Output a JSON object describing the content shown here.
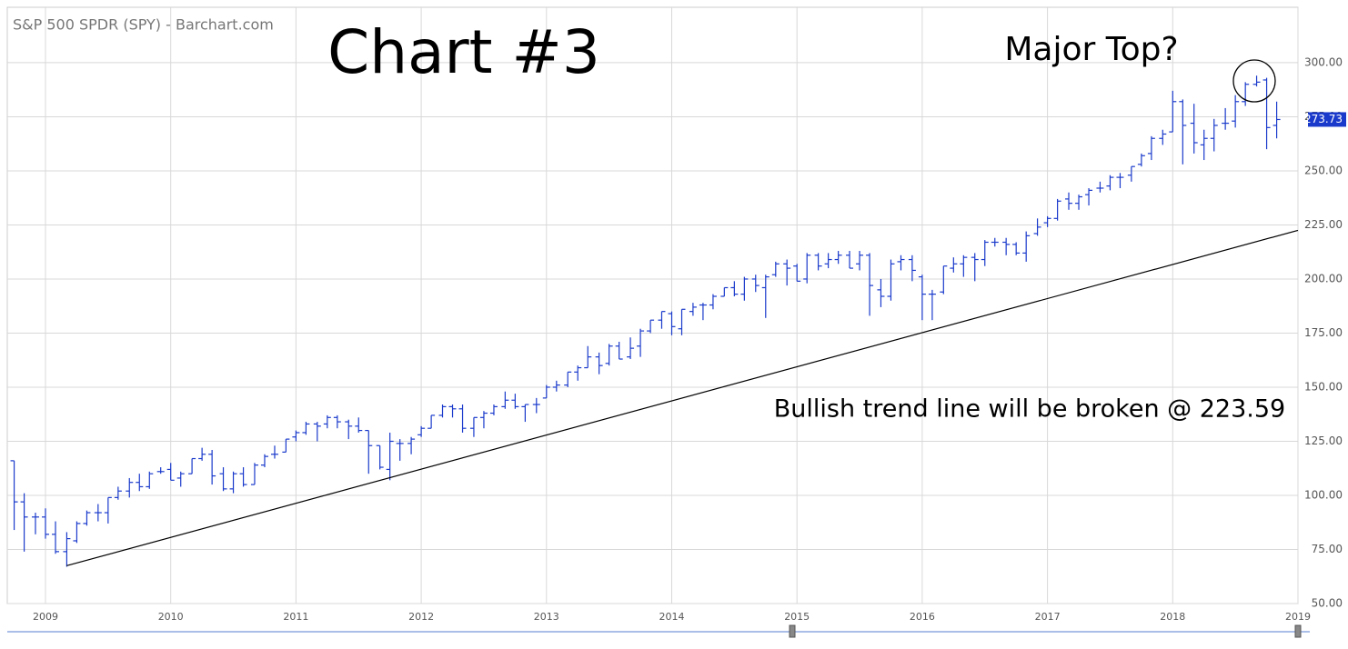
{
  "chart_data": {
    "type": "ohlc",
    "title": "S&P 500 SPDR (SPY) - Barchart.com",
    "annotations": [
      "Chart #3",
      "Major Top?",
      "Bullish trend line will be broken @ 223.59"
    ],
    "color": "#1a3acb",
    "grid": true,
    "xlim": [
      2008.695,
      2019.0
    ],
    "xticks": [
      2009,
      2010,
      2011,
      2012,
      2013,
      2014,
      2015,
      2016,
      2017,
      2018,
      2019
    ],
    "ylim": [
      50,
      325.6
    ],
    "yticks": [
      {
        "value": 50,
        "label": "50.00"
      },
      {
        "value": 75,
        "label": "75.00"
      },
      {
        "value": 100,
        "label": "100.00"
      },
      {
        "value": 125,
        "label": "125.00"
      },
      {
        "value": 150,
        "label": "150.00"
      },
      {
        "value": 175,
        "label": "175.00"
      },
      {
        "value": 200,
        "label": "200.00"
      },
      {
        "value": 225,
        "label": "225.00"
      },
      {
        "value": 250,
        "label": "250.00"
      },
      {
        "value": 275,
        "label": "275.00"
      },
      {
        "value": 300,
        "label": "300.00"
      }
    ],
    "last_price": 273.73,
    "trend_line": {
      "x": [
        2009.17,
        2019.0
      ],
      "y": [
        67.5,
        222.5
      ]
    },
    "x": [
      2008.75,
      2008.83,
      2008.92,
      2009.0,
      2009.08,
      2009.17,
      2009.25,
      2009.33,
      2009.42,
      2009.5,
      2009.58,
      2009.67,
      2009.75,
      2009.83,
      2009.92,
      2010.0,
      2010.08,
      2010.17,
      2010.25,
      2010.33,
      2010.42,
      2010.5,
      2010.58,
      2010.67,
      2010.75,
      2010.83,
      2010.92,
      2011.0,
      2011.08,
      2011.17,
      2011.25,
      2011.33,
      2011.42,
      2011.5,
      2011.58,
      2011.67,
      2011.75,
      2011.83,
      2011.92,
      2012.0,
      2012.08,
      2012.17,
      2012.25,
      2012.33,
      2012.42,
      2012.5,
      2012.58,
      2012.67,
      2012.75,
      2012.83,
      2012.92,
      2013.0,
      2013.08,
      2013.17,
      2013.25,
      2013.33,
      2013.42,
      2013.5,
      2013.58,
      2013.67,
      2013.75,
      2013.83,
      2013.92,
      2014.0,
      2014.08,
      2014.17,
      2014.25,
      2014.33,
      2014.42,
      2014.5,
      2014.58,
      2014.67,
      2014.75,
      2014.83,
      2014.92,
      2015.0,
      2015.08,
      2015.17,
      2015.25,
      2015.33,
      2015.42,
      2015.5,
      2015.58,
      2015.67,
      2015.75,
      2015.83,
      2015.92,
      2016.0,
      2016.08,
      2016.17,
      2016.25,
      2016.33,
      2016.42,
      2016.5,
      2016.58,
      2016.67,
      2016.75,
      2016.83,
      2016.92,
      2017.0,
      2017.08,
      2017.17,
      2017.25,
      2017.33,
      2017.42,
      2017.5,
      2017.58,
      2017.67,
      2017.75,
      2017.83,
      2017.92,
      2018.0,
      2018.08,
      2018.17,
      2018.25,
      2018.33,
      2018.42,
      2018.5,
      2018.58,
      2018.67,
      2018.75,
      2018.83
    ],
    "open": [
      116,
      97,
      90,
      90,
      82,
      74,
      79,
      87,
      92,
      92,
      99,
      102,
      106,
      104,
      111,
      112,
      108,
      110,
      117,
      119,
      110,
      103,
      110,
      105,
      114,
      119,
      120,
      127,
      129,
      133,
      133,
      136,
      134,
      132,
      130,
      123,
      112,
      124,
      124,
      128,
      131,
      137,
      141,
      140,
      131,
      136,
      138,
      141,
      144,
      141,
      142,
      145,
      150,
      151,
      157,
      159,
      164,
      161,
      169,
      164,
      169,
      176,
      181,
      184,
      177,
      185,
      188,
      188,
      192,
      196,
      193,
      200,
      196,
      202,
      207,
      206,
      200,
      211,
      207,
      209,
      211,
      207,
      211,
      195,
      192,
      208,
      209,
      201,
      193,
      194,
      205,
      207,
      210,
      209,
      217,
      217,
      216,
      212,
      221,
      226,
      228,
      237,
      235,
      239,
      242,
      243,
      247,
      248,
      253,
      258,
      265,
      268,
      282,
      272,
      262,
      265,
      272,
      273,
      282,
      290,
      292,
      271
    ],
    "high": [
      116,
      101,
      92,
      94,
      88,
      83,
      88,
      93,
      96,
      99,
      104,
      108,
      110,
      111,
      113,
      115,
      111,
      117,
      122,
      121,
      113,
      111,
      113,
      115,
      119,
      123,
      126,
      130,
      134,
      134,
      137,
      137,
      135,
      136,
      130,
      123,
      129,
      126,
      127,
      132,
      137,
      142,
      142,
      142,
      136,
      139,
      142,
      148,
      147,
      142,
      145,
      151,
      153,
      157,
      160,
      169,
      166,
      170,
      171,
      173,
      177,
      181,
      185,
      185,
      186,
      189,
      189,
      193,
      196,
      199,
      201,
      202,
      202,
      208,
      209,
      207,
      212,
      212,
      212,
      213,
      213,
      213,
      212,
      200,
      209,
      211,
      211,
      202,
      195,
      206,
      210,
      211,
      212,
      218,
      219,
      219,
      217,
      222,
      228,
      229,
      237,
      240,
      239,
      242,
      245,
      248,
      249,
      252,
      258,
      266,
      269,
      287,
      283,
      281,
      269,
      274,
      279,
      285,
      291,
      294,
      293,
      282
    ],
    "low": [
      84,
      74,
      82,
      80,
      73,
      67,
      78,
      86,
      88,
      87,
      98,
      99,
      102,
      103,
      110,
      107,
      104,
      110,
      116,
      105,
      102,
      101,
      104,
      105,
      113,
      117,
      120,
      125,
      128,
      125,
      131,
      131,
      126,
      129,
      110,
      112,
      107,
      116,
      119,
      127,
      131,
      136,
      136,
      129,
      127,
      131,
      137,
      140,
      140,
      134,
      138,
      145,
      148,
      150,
      153,
      159,
      156,
      160,
      163,
      163,
      164,
      175,
      177,
      174,
      174,
      183,
      181,
      186,
      192,
      192,
      190,
      194,
      182,
      201,
      197,
      199,
      198,
      204,
      205,
      207,
      205,
      204,
      183,
      187,
      190,
      204,
      199,
      181,
      181,
      193,
      203,
      201,
      199,
      206,
      215,
      211,
      211,
      208,
      220,
      224,
      227,
      232,
      232,
      234,
      240,
      241,
      242,
      245,
      252,
      255,
      262,
      268,
      253,
      258,
      255,
      259,
      269,
      270,
      280,
      289,
      260,
      265
    ],
    "close": [
      97,
      90,
      90,
      82,
      74,
      80,
      87,
      92,
      92,
      99,
      102,
      106,
      104,
      110,
      111,
      107,
      110,
      117,
      119,
      109,
      103,
      110,
      105,
      114,
      118,
      119,
      126,
      129,
      133,
      132,
      136,
      134,
      132,
      130,
      123,
      113,
      125,
      124,
      126,
      131,
      137,
      141,
      140,
      131,
      136,
      138,
      141,
      144,
      141,
      142,
      142,
      150,
      151,
      157,
      159,
      164,
      160,
      169,
      163,
      168,
      176,
      181,
      185,
      178,
      186,
      187,
      188,
      192,
      196,
      193,
      200,
      197,
      201,
      207,
      205,
      199,
      211,
      206,
      209,
      211,
      205,
      211,
      197,
      192,
      207,
      209,
      204,
      193,
      193,
      206,
      207,
      210,
      209,
      217,
      217,
      216,
      212,
      220,
      224,
      228,
      236,
      235,
      238,
      241,
      242,
      247,
      247,
      252,
      257,
      265,
      267,
      282,
      271,
      263,
      265,
      271,
      272,
      282,
      290,
      291,
      270,
      273.73
    ]
  }
}
